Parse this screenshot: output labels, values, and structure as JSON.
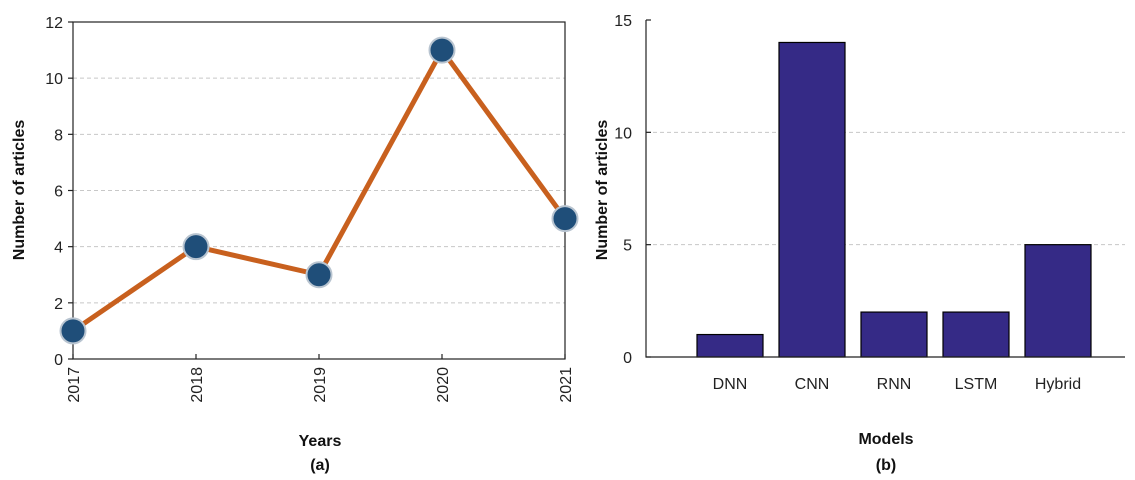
{
  "chart_data": [
    {
      "type": "line",
      "x": [
        "2017",
        "2018",
        "2019",
        "2020",
        "2021"
      ],
      "series": [
        {
          "values": [
            1,
            4,
            3,
            11,
            5
          ]
        }
      ],
      "xlabel": "Years",
      "ylabel": "Number of articles",
      "ylim": [
        0,
        12
      ],
      "yticks": [
        "0",
        "2",
        "4",
        "6",
        "8",
        "10",
        "12"
      ],
      "panel_label": "(a)",
      "grid": "horizontal dashed",
      "line_color": "#c8601e",
      "marker_color": "#1f4e79"
    },
    {
      "type": "bar",
      "categories": [
        "DNN",
        "CNN",
        "RNN",
        "LSTM",
        "Hybrid"
      ],
      "values": [
        1,
        14,
        2,
        2,
        5
      ],
      "xlabel": "Models",
      "ylabel": "Number of articles",
      "ylim": [
        0,
        15
      ],
      "yticks": [
        "0",
        "5",
        "10",
        "15"
      ],
      "panel_label": "(b)",
      "grid": "horizontal dashed",
      "bar_color": "#352a86"
    }
  ]
}
